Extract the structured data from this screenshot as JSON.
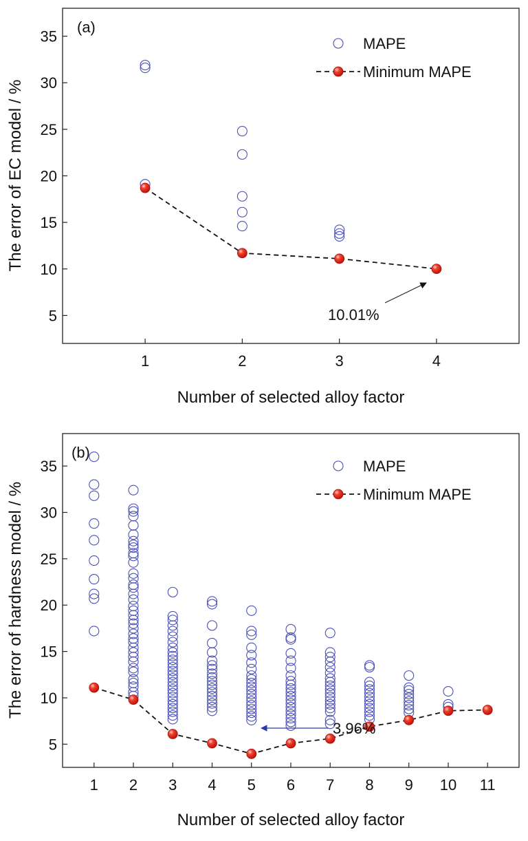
{
  "chart_data": [
    {
      "type": "scatter",
      "panel_label": "(a)",
      "xlabel": "Number of selected alloy factor",
      "ylabel": "The error of EC model / %",
      "xlim": [
        0.15,
        4.85
      ],
      "ylim": [
        2,
        38
      ],
      "xticks": [
        1,
        2,
        3,
        4
      ],
      "yticks": [
        5,
        10,
        15,
        20,
        25,
        30,
        35
      ],
      "legend": {
        "placement": "top-right",
        "entries": [
          "MAPE",
          "Minimum MAPE"
        ]
      },
      "series": [
        {
          "name": "MAPE",
          "marker": "open-circle",
          "color": "#4a50b8",
          "points": [
            [
              1,
              31.9
            ],
            [
              1,
              31.6
            ],
            [
              1,
              19.1
            ],
            [
              2,
              24.8
            ],
            [
              2,
              22.3
            ],
            [
              2,
              17.8
            ],
            [
              2,
              16.1
            ],
            [
              2,
              14.6
            ],
            [
              3,
              14.2
            ],
            [
              3,
              13.8
            ],
            [
              3,
              13.5
            ]
          ]
        },
        {
          "name": "Minimum MAPE",
          "marker": "filled-circle",
          "color": "#e0241b",
          "line": "dashed",
          "points": [
            [
              1,
              18.7
            ],
            [
              2,
              11.7
            ],
            [
              3,
              11.1
            ],
            [
              4,
              10.01
            ]
          ]
        }
      ],
      "annotations": [
        {
          "text": "10.01%",
          "target": [
            4,
            10.01
          ]
        }
      ]
    },
    {
      "type": "scatter",
      "panel_label": "(b)",
      "xlabel": "Number of selected alloy factor",
      "ylabel": "The error of hardness model / %",
      "xlim": [
        0.2,
        11.8
      ],
      "ylim": [
        2.5,
        38.5
      ],
      "xticks": [
        1,
        2,
        3,
        4,
        5,
        6,
        7,
        8,
        9,
        10,
        11
      ],
      "yticks": [
        5,
        10,
        15,
        20,
        25,
        30,
        35
      ],
      "legend": {
        "placement": "top-right",
        "entries": [
          "MAPE",
          "Minimum MAPE"
        ]
      },
      "series": [
        {
          "name": "MAPE",
          "marker": "open-circle",
          "color": "#4a50b8",
          "points": [
            [
              1,
              36.0
            ],
            [
              1,
              33.0
            ],
            [
              1,
              31.8
            ],
            [
              1,
              28.8
            ],
            [
              1,
              27.0
            ],
            [
              1,
              24.8
            ],
            [
              1,
              22.8
            ],
            [
              1,
              21.2
            ],
            [
              1,
              20.7
            ],
            [
              1,
              17.2
            ],
            [
              2,
              32.4
            ],
            [
              2,
              30.4
            ],
            [
              2,
              30.1
            ],
            [
              2,
              29.6
            ],
            [
              2,
              28.6
            ],
            [
              2,
              27.6
            ],
            [
              2,
              26.9
            ],
            [
              2,
              26.5
            ],
            [
              2,
              26.2
            ],
            [
              2,
              25.6
            ],
            [
              2,
              25.3
            ],
            [
              2,
              24.6
            ],
            [
              2,
              23.4
            ],
            [
              2,
              22.9
            ],
            [
              2,
              22.2
            ],
            [
              2,
              21.9
            ],
            [
              2,
              21.2
            ],
            [
              2,
              20.6
            ],
            [
              2,
              19.9
            ],
            [
              2,
              19.4
            ],
            [
              2,
              18.9
            ],
            [
              2,
              18.4
            ],
            [
              2,
              18.0
            ],
            [
              2,
              17.5
            ],
            [
              2,
              16.9
            ],
            [
              2,
              16.4
            ],
            [
              2,
              16.0
            ],
            [
              2,
              15.4
            ],
            [
              2,
              14.9
            ],
            [
              2,
              14.4
            ],
            [
              2,
              13.9
            ],
            [
              2,
              13.2
            ],
            [
              2,
              12.8
            ],
            [
              2,
              12.0
            ],
            [
              2,
              11.6
            ],
            [
              2,
              11.2
            ],
            [
              2,
              10.6
            ],
            [
              2,
              10.2
            ],
            [
              3,
              21.4
            ],
            [
              3,
              18.8
            ],
            [
              3,
              18.4
            ],
            [
              3,
              17.8
            ],
            [
              3,
              17.2
            ],
            [
              3,
              16.6
            ],
            [
              3,
              16.0
            ],
            [
              3,
              15.4
            ],
            [
              3,
              14.9
            ],
            [
              3,
              14.5
            ],
            [
              3,
              14.1
            ],
            [
              3,
              13.7
            ],
            [
              3,
              13.3
            ],
            [
              3,
              12.9
            ],
            [
              3,
              12.5
            ],
            [
              3,
              12.1
            ],
            [
              3,
              11.7
            ],
            [
              3,
              11.3
            ],
            [
              3,
              10.9
            ],
            [
              3,
              10.5
            ],
            [
              3,
              10.1
            ],
            [
              3,
              9.7
            ],
            [
              3,
              9.3
            ],
            [
              3,
              8.9
            ],
            [
              3,
              8.5
            ],
            [
              3,
              8.1
            ],
            [
              3,
              7.7
            ],
            [
              4,
              20.4
            ],
            [
              4,
              20.1
            ],
            [
              4,
              17.8
            ],
            [
              4,
              15.9
            ],
            [
              4,
              14.9
            ],
            [
              4,
              14.0
            ],
            [
              4,
              13.5
            ],
            [
              4,
              13.1
            ],
            [
              4,
              12.6
            ],
            [
              4,
              12.2
            ],
            [
              4,
              11.8
            ],
            [
              4,
              11.4
            ],
            [
              4,
              11.0
            ],
            [
              4,
              10.6
            ],
            [
              4,
              10.2
            ],
            [
              4,
              9.8
            ],
            [
              4,
              9.4
            ],
            [
              4,
              9.0
            ],
            [
              4,
              8.6
            ],
            [
              5,
              19.4
            ],
            [
              5,
              17.2
            ],
            [
              5,
              16.8
            ],
            [
              5,
              15.4
            ],
            [
              5,
              14.6
            ],
            [
              5,
              13.8
            ],
            [
              5,
              13.1
            ],
            [
              5,
              12.4
            ],
            [
              5,
              12.0
            ],
            [
              5,
              11.6
            ],
            [
              5,
              11.2
            ],
            [
              5,
              10.8
            ],
            [
              5,
              10.4
            ],
            [
              5,
              10.0
            ],
            [
              5,
              9.6
            ],
            [
              5,
              9.2
            ],
            [
              5,
              8.8
            ],
            [
              5,
              8.4
            ],
            [
              5,
              8.0
            ],
            [
              5,
              7.6
            ],
            [
              6,
              17.4
            ],
            [
              6,
              16.5
            ],
            [
              6,
              16.3
            ],
            [
              6,
              14.8
            ],
            [
              6,
              14.0
            ],
            [
              6,
              13.2
            ],
            [
              6,
              12.4
            ],
            [
              6,
              11.8
            ],
            [
              6,
              11.4
            ],
            [
              6,
              11.0
            ],
            [
              6,
              10.6
            ],
            [
              6,
              10.2
            ],
            [
              6,
              9.8
            ],
            [
              6,
              9.4
            ],
            [
              6,
              9.0
            ],
            [
              6,
              8.6
            ],
            [
              6,
              8.2
            ],
            [
              6,
              7.8
            ],
            [
              6,
              7.4
            ],
            [
              6,
              7.0
            ],
            [
              7,
              17.0
            ],
            [
              7,
              14.9
            ],
            [
              7,
              14.4
            ],
            [
              7,
              13.9
            ],
            [
              7,
              13.3
            ],
            [
              7,
              12.7
            ],
            [
              7,
              12.1
            ],
            [
              7,
              11.7
            ],
            [
              7,
              11.3
            ],
            [
              7,
              10.9
            ],
            [
              7,
              10.5
            ],
            [
              7,
              10.1
            ],
            [
              7,
              9.7
            ],
            [
              7,
              9.3
            ],
            [
              7,
              8.9
            ],
            [
              7,
              8.5
            ],
            [
              7,
              7.6
            ],
            [
              7,
              7.2
            ],
            [
              8,
              13.5
            ],
            [
              8,
              13.3
            ],
            [
              8,
              11.7
            ],
            [
              8,
              11.3
            ],
            [
              8,
              10.9
            ],
            [
              8,
              10.5
            ],
            [
              8,
              10.1
            ],
            [
              8,
              9.7
            ],
            [
              8,
              9.3
            ],
            [
              8,
              8.9
            ],
            [
              8,
              8.5
            ],
            [
              8,
              8.1
            ],
            [
              8,
              7.7
            ],
            [
              9,
              12.4
            ],
            [
              9,
              11.1
            ],
            [
              9,
              10.8
            ],
            [
              9,
              10.4
            ],
            [
              9,
              10.0
            ],
            [
              9,
              9.6
            ],
            [
              9,
              9.2
            ],
            [
              9,
              8.8
            ],
            [
              9,
              8.4
            ],
            [
              10,
              10.7
            ],
            [
              10,
              9.3
            ],
            [
              10,
              9.0
            ]
          ]
        },
        {
          "name": "Minimum MAPE",
          "marker": "filled-circle",
          "color": "#e0241b",
          "line": "dashed",
          "points": [
            [
              1,
              11.1
            ],
            [
              2,
              9.8
            ],
            [
              3,
              6.1
            ],
            [
              4,
              5.1
            ],
            [
              5,
              3.96
            ],
            [
              6,
              5.1
            ],
            [
              7,
              5.6
            ],
            [
              8,
              6.9
            ],
            [
              9,
              7.6
            ],
            [
              10,
              8.6
            ],
            [
              11,
              8.7
            ]
          ]
        }
      ],
      "annotations": [
        {
          "text": "3.96%",
          "target": [
            5,
            3.96
          ],
          "arrow_color": "#2a3aa8"
        }
      ]
    }
  ]
}
